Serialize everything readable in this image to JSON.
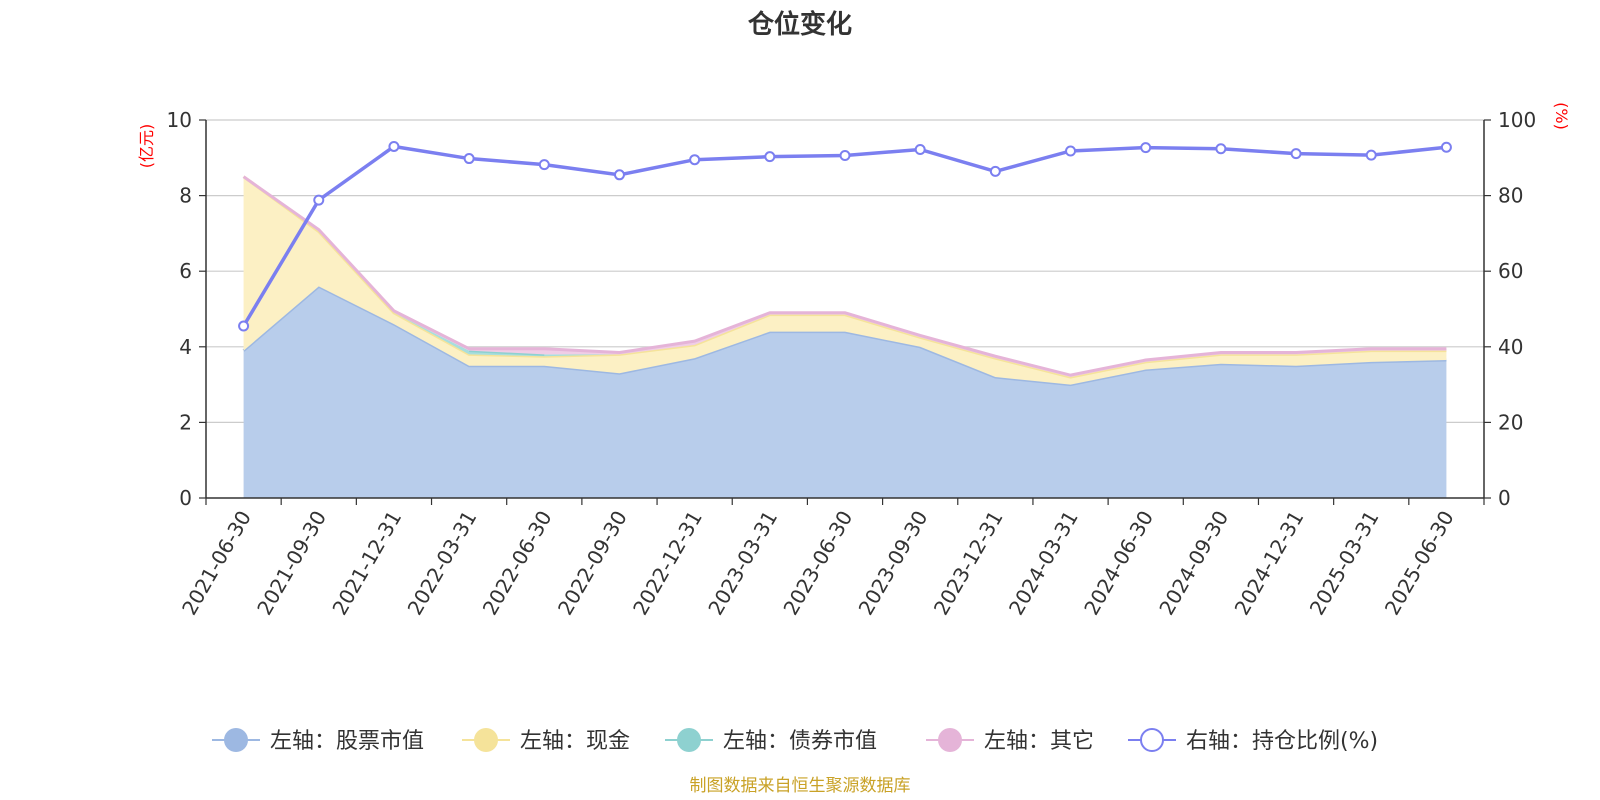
{
  "chart_data": {
    "type": "area",
    "title": "仓位变化",
    "y_left_unit": "(亿元)",
    "y_right_unit": "(%)",
    "ylim_left": [
      0,
      10
    ],
    "ylim_right": [
      0,
      100
    ],
    "yticks_left": [
      "0",
      "2",
      "4",
      "6",
      "8",
      "10"
    ],
    "yticks_right": [
      "0",
      "20",
      "40",
      "60",
      "80",
      "100"
    ],
    "grid": true,
    "legend_position": "bottom",
    "categories": [
      "2021-06-30",
      "2021-09-30",
      "2021-12-31",
      "2022-03-31",
      "2022-06-30",
      "2022-09-30",
      "2022-12-31",
      "2023-03-31",
      "2023-06-30",
      "2023-09-30",
      "2023-12-31",
      "2024-03-31",
      "2024-06-30",
      "2024-09-30",
      "2024-12-31",
      "2025-03-31",
      "2025-06-30"
    ],
    "series": [
      {
        "name": "左轴：股票市值",
        "axis": "left",
        "stack": true,
        "color": "#9db8e2",
        "fill": "#b8cdeb",
        "values": [
          3.9,
          5.6,
          4.6,
          3.5,
          3.5,
          3.3,
          3.7,
          4.4,
          4.4,
          4.0,
          3.2,
          3.0,
          3.4,
          3.55,
          3.5,
          3.6,
          3.65
        ]
      },
      {
        "name": "左轴：现金",
        "axis": "left",
        "stack": true,
        "color": "#f5e39a",
        "fill": "#fcf0c4",
        "values": [
          4.6,
          1.45,
          0.3,
          0.3,
          0.25,
          0.5,
          0.35,
          0.45,
          0.45,
          0.25,
          0.5,
          0.2,
          0.2,
          0.25,
          0.3,
          0.3,
          0.25
        ]
      },
      {
        "name": "左轴：债券市值",
        "axis": "left",
        "stack": true,
        "color": "#8ed1d0",
        "fill": "#a8dedd",
        "values": [
          0,
          0,
          0,
          0.1,
          0.05,
          0,
          0,
          0,
          0,
          0,
          0,
          0,
          0,
          0,
          0,
          0,
          0
        ]
      },
      {
        "name": "左轴：其它",
        "axis": "left",
        "stack": true,
        "color": "#e5b4d8",
        "fill": "#f0cde6",
        "values": [
          0,
          0.05,
          0.05,
          0.05,
          0.15,
          0.05,
          0.1,
          0.05,
          0.05,
          0.05,
          0.05,
          0.05,
          0.05,
          0.05,
          0.05,
          0.05,
          0.05
        ]
      },
      {
        "name": "右轴：持仓比例(%)",
        "axis": "right",
        "stack": false,
        "color": "#7b7ff0",
        "values": [
          45.5,
          78.8,
          93.0,
          89.8,
          88.2,
          85.5,
          89.5,
          90.3,
          90.6,
          92.2,
          86.4,
          91.8,
          92.7,
          92.4,
          91.1,
          90.7,
          92.8
        ]
      }
    ],
    "source": "制图数据来自恒生聚源数据库"
  }
}
